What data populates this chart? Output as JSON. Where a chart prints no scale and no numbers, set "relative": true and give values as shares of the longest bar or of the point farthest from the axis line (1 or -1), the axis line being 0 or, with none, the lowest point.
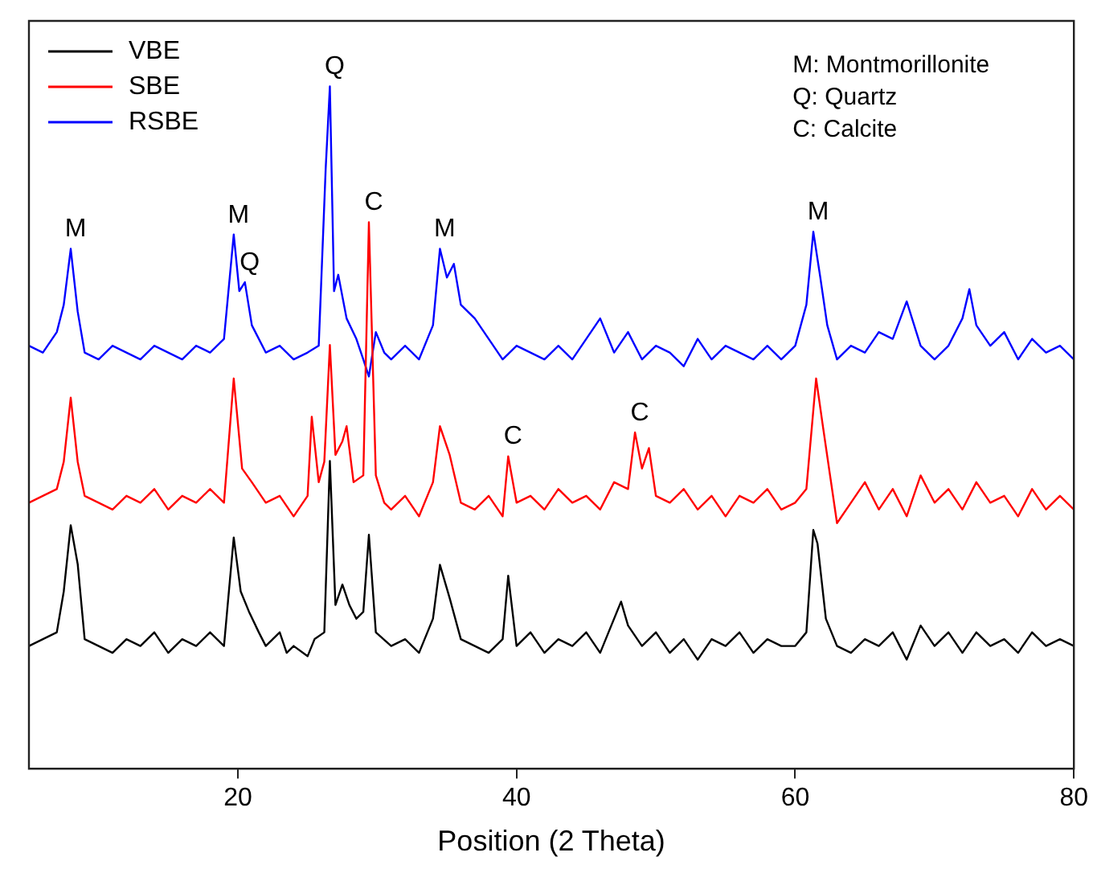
{
  "chart_data": {
    "type": "line",
    "xlabel": "Position (2 Theta)",
    "relative": true,
    "xlim": [
      5,
      80
    ],
    "xticks": [
      20,
      40,
      60,
      80
    ],
    "grid": false,
    "legend": "top left",
    "marker": "none",
    "line_style": "solid",
    "series": [
      {
        "name": "VBE",
        "color": "#000000",
        "x": [
          5,
          6,
          7,
          7.5,
          8,
          8.5,
          9,
          10,
          11,
          12,
          13,
          14,
          15,
          16,
          17,
          18,
          19,
          19.7,
          20.2,
          20.8,
          21.5,
          22,
          23,
          23.5,
          24,
          25,
          25.5,
          26.2,
          26.6,
          27,
          27.5,
          28,
          28.5,
          29,
          29.4,
          29.9,
          31,
          32,
          33,
          34,
          34.5,
          35.2,
          36,
          37,
          38,
          39,
          39.4,
          40,
          41,
          42,
          43,
          44,
          45,
          46,
          47,
          47.5,
          48,
          49,
          50,
          51,
          52,
          53,
          54,
          55,
          56,
          57,
          58,
          59,
          60,
          60.8,
          61.3,
          61.6,
          62.2,
          63,
          64,
          65,
          66,
          67,
          68,
          69,
          70,
          71,
          72,
          73,
          74,
          75,
          76,
          77,
          78,
          79,
          80
        ],
        "values": [
          0.18,
          0.19,
          0.2,
          0.26,
          0.357,
          0.3,
          0.19,
          0.18,
          0.17,
          0.19,
          0.18,
          0.2,
          0.17,
          0.19,
          0.18,
          0.2,
          0.18,
          0.339,
          0.26,
          0.23,
          0.2,
          0.18,
          0.2,
          0.17,
          0.18,
          0.165,
          0.19,
          0.2,
          0.451,
          0.24,
          0.27,
          0.24,
          0.22,
          0.23,
          0.343,
          0.2,
          0.18,
          0.19,
          0.17,
          0.22,
          0.299,
          0.25,
          0.19,
          0.18,
          0.17,
          0.19,
          0.283,
          0.18,
          0.2,
          0.17,
          0.19,
          0.18,
          0.2,
          0.17,
          0.22,
          0.245,
          0.21,
          0.18,
          0.2,
          0.17,
          0.19,
          0.16,
          0.19,
          0.18,
          0.2,
          0.17,
          0.19,
          0.18,
          0.18,
          0.2,
          0.35,
          0.33,
          0.22,
          0.18,
          0.17,
          0.19,
          0.18,
          0.2,
          0.16,
          0.21,
          0.18,
          0.2,
          0.17,
          0.2,
          0.18,
          0.19,
          0.17,
          0.2,
          0.18,
          0.19,
          0.18
        ]
      },
      {
        "name": "SBE",
        "color": "#ff0000",
        "x": [
          5,
          6,
          7,
          7.5,
          8,
          8.5,
          9,
          10,
          11,
          12,
          13,
          14,
          15,
          16,
          17,
          18,
          19,
          19.7,
          20.3,
          21,
          22,
          23,
          24,
          25,
          25.3,
          25.8,
          26.2,
          26.6,
          27,
          27.5,
          27.8,
          28.3,
          29,
          29.4,
          29.9,
          30.5,
          31,
          32,
          33,
          34,
          34.5,
          35.2,
          36,
          37,
          38,
          39,
          39.4,
          40,
          41,
          42,
          43,
          44,
          45,
          46,
          47,
          48,
          48.5,
          49,
          49.5,
          50,
          51,
          52,
          53,
          54,
          55,
          56,
          57,
          58,
          59,
          60,
          60.8,
          61.5,
          62,
          62.5,
          63,
          64,
          65,
          66,
          67,
          68,
          69,
          70,
          71,
          72,
          73,
          74,
          75,
          76,
          77,
          78,
          79,
          80
        ],
        "values": [
          0.39,
          0.4,
          0.41,
          0.45,
          0.544,
          0.45,
          0.4,
          0.39,
          0.38,
          0.4,
          0.39,
          0.41,
          0.38,
          0.4,
          0.39,
          0.41,
          0.39,
          0.572,
          0.44,
          0.42,
          0.39,
          0.4,
          0.37,
          0.4,
          0.516,
          0.42,
          0.45,
          0.621,
          0.46,
          0.48,
          0.502,
          0.42,
          0.43,
          0.801,
          0.43,
          0.39,
          0.38,
          0.4,
          0.37,
          0.42,
          0.502,
          0.46,
          0.39,
          0.38,
          0.4,
          0.37,
          0.458,
          0.39,
          0.4,
          0.38,
          0.41,
          0.39,
          0.4,
          0.38,
          0.42,
          0.41,
          0.493,
          0.44,
          0.47,
          0.4,
          0.39,
          0.41,
          0.38,
          0.4,
          0.37,
          0.4,
          0.39,
          0.41,
          0.38,
          0.39,
          0.41,
          0.572,
          0.5,
          0.43,
          0.36,
          0.39,
          0.42,
          0.38,
          0.41,
          0.37,
          0.43,
          0.39,
          0.41,
          0.38,
          0.42,
          0.39,
          0.4,
          0.37,
          0.41,
          0.38,
          0.4,
          0.38
        ]
      },
      {
        "name": "RSBE",
        "color": "#0000ff",
        "x": [
          5,
          6,
          7,
          7.5,
          8,
          8.5,
          9,
          10,
          11,
          12,
          13,
          14,
          15,
          16,
          17,
          18,
          19,
          19.7,
          20.1,
          20.5,
          21,
          22,
          23,
          24,
          25,
          25.8,
          26.3,
          26.6,
          26.9,
          27.2,
          27.8,
          28.5,
          29,
          29.4,
          29.9,
          30.5,
          31,
          32,
          33,
          34,
          34.5,
          35,
          35.5,
          36,
          37,
          38,
          39,
          40,
          41,
          42,
          43,
          44,
          45,
          46,
          47,
          48,
          49,
          50,
          51,
          52,
          53,
          54,
          55,
          56,
          57,
          58,
          59,
          60,
          60.8,
          61.3,
          61.8,
          62.3,
          63,
          64,
          65,
          66,
          67,
          68,
          69,
          70,
          71,
          72,
          72.5,
          73,
          74,
          75,
          76,
          77,
          78,
          79,
          80
        ],
        "values": [
          0.62,
          0.61,
          0.64,
          0.68,
          0.762,
          0.67,
          0.61,
          0.6,
          0.62,
          0.61,
          0.6,
          0.62,
          0.61,
          0.6,
          0.62,
          0.61,
          0.63,
          0.783,
          0.7,
          0.713,
          0.65,
          0.61,
          0.62,
          0.6,
          0.61,
          0.62,
          0.88,
          1,
          0.7,
          0.724,
          0.66,
          0.63,
          0.6,
          0.575,
          0.64,
          0.61,
          0.6,
          0.62,
          0.6,
          0.65,
          0.762,
          0.72,
          0.74,
          0.68,
          0.66,
          0.63,
          0.6,
          0.62,
          0.61,
          0.6,
          0.62,
          0.6,
          0.63,
          0.66,
          0.61,
          0.64,
          0.6,
          0.62,
          0.61,
          0.59,
          0.63,
          0.6,
          0.62,
          0.61,
          0.6,
          0.62,
          0.6,
          0.62,
          0.68,
          0.787,
          0.72,
          0.65,
          0.6,
          0.62,
          0.61,
          0.64,
          0.63,
          0.685,
          0.62,
          0.6,
          0.62,
          0.66,
          0.703,
          0.65,
          0.62,
          0.64,
          0.6,
          0.63,
          0.61,
          0.62,
          0.6
        ]
      }
    ],
    "annotations": [
      "M: Montmorillonite",
      "Q: Quartz",
      "C: Calcite",
      {
        "text": "M",
        "x": 8,
        "y": 0.762
      },
      {
        "text": "M",
        "x": 19.7,
        "y": 0.783
      },
      {
        "text": "Q",
        "x": 20.5,
        "y": 0.713
      },
      {
        "text": "Q",
        "x": 26.6,
        "y": 1
      },
      {
        "text": "C",
        "x": 29.4,
        "y": 0.801
      },
      {
        "text": "M",
        "x": 34.5,
        "y": 0.762
      },
      {
        "text": "M",
        "x": 61.3,
        "y": 0.787
      },
      {
        "text": "C",
        "x": 39.4,
        "y": 0.458
      },
      {
        "text": "C",
        "x": 48.5,
        "y": 0.493
      }
    ]
  }
}
